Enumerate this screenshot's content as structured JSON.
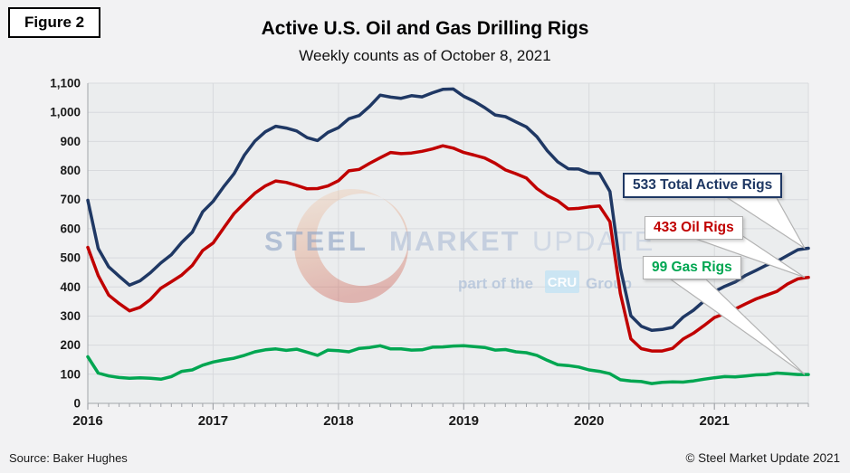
{
  "figure_label": "Figure 2",
  "title": "Active U.S. Oil and Gas Drilling Rigs",
  "subtitle": "Weekly counts as of October 8, 2021",
  "source": "Source: Baker Hughes",
  "copyright": "© Steel Market Update 2021",
  "watermark": {
    "word1": "STEEL",
    "word2": "MARKET",
    "word3": "UPDATE",
    "tagline": "part of the",
    "cru": "CRU",
    "group": "Group"
  },
  "annotations": [
    {
      "label": "533 Total Active Rigs",
      "value": 533,
      "color": "#1f3864"
    },
    {
      "label": "433 Oil Rigs",
      "value": 433,
      "color": "#c00000"
    },
    {
      "label": "99 Gas Rigs",
      "value": 99,
      "color": "#00a651"
    }
  ],
  "chart_data": {
    "type": "line",
    "title": "Active U.S. Oil and Gas Drilling Rigs",
    "subtitle": "Weekly counts as of October 8, 2021",
    "xlabel": "",
    "ylabel": "",
    "x_ticks": [
      "2016",
      "2017",
      "2018",
      "2019",
      "2020",
      "2021"
    ],
    "y_ticks": [
      "0",
      "100",
      "200",
      "300",
      "400",
      "500",
      "600",
      "700",
      "800",
      "900",
      "1,000",
      "1,100"
    ],
    "ylim": [
      0,
      1100
    ],
    "xlim": [
      2016.0,
      2021.75
    ],
    "grid": true,
    "legend_position": "callout-labels-right",
    "x_start": 2016.0,
    "x_step": 0.083333,
    "x_unit": "decimal year, monthly samples Jan 2016 - Oct 8 2021",
    "series": [
      {
        "name": "Total Active Rigs",
        "color": "#1f3864",
        "values": [
          698,
          532,
          469,
          437,
          406,
          421,
          449,
          483,
          511,
          553,
          588,
          658,
          694,
          744,
          789,
          853,
          901,
          933,
          952,
          946,
          936,
          913,
          903,
          931,
          947,
          978,
          989,
          1021,
          1059,
          1052,
          1048,
          1057,
          1053,
          1067,
          1079,
          1080,
          1055,
          1038,
          1016,
          991,
          985,
          967,
          950,
          916,
          868,
          830,
          806,
          805,
          791,
          790,
          728,
          465,
          301,
          265,
          251,
          254,
          261,
          296,
          320,
          351,
          384,
          402,
          417,
          440,
          457,
          475,
          488,
          508,
          528,
          533
        ]
      },
      {
        "name": "Oil Rigs",
        "color": "#c00000",
        "values": [
          536,
          439,
          372,
          343,
          318,
          330,
          357,
          396,
          418,
          441,
          474,
          525,
          551,
          602,
          652,
          688,
          722,
          747,
          764,
          759,
          749,
          737,
          738,
          747,
          765,
          799,
          804,
          825,
          844,
          862,
          858,
          860,
          866,
          874,
          885,
          877,
          862,
          853,
          843,
          825,
          802,
          789,
          774,
          738,
          713,
          696,
          668,
          670,
          675,
          678,
          624,
          378,
          222,
          188,
          180,
          180,
          189,
          221,
          241,
          267,
          295,
          309,
          324,
          342,
          359,
          372,
          385,
          410,
          428,
          433
        ]
      },
      {
        "name": "Gas Rigs",
        "color": "#00a651",
        "values": [
          160,
          104,
          94,
          89,
          86,
          88,
          86,
          83,
          92,
          110,
          115,
          131,
          142,
          149,
          155,
          165,
          177,
          184,
          187,
          182,
          186,
          176,
          165,
          183,
          181,
          177,
          189,
          192,
          198,
          187,
          187,
          183,
          184,
          193,
          194,
          197,
          198,
          195,
          192,
          183,
          185,
          177,
          174,
          165,
          148,
          133,
          130,
          125,
          115,
          110,
          102,
          81,
          77,
          75,
          68,
          72,
          74,
          73,
          77,
          83,
          88,
          92,
          91,
          94,
          98,
          99,
          104,
          102,
          99,
          99
        ]
      }
    ]
  }
}
